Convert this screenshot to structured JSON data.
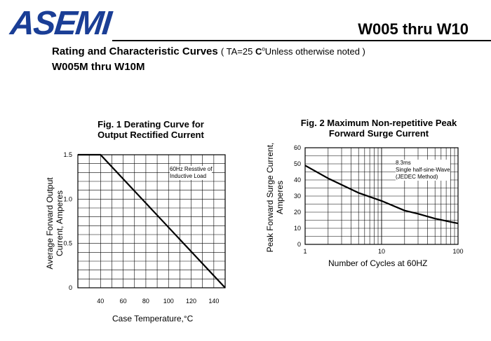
{
  "header": {
    "logo": "ASEMI",
    "model": "W005 thru W10",
    "title": "Rating and Characteristic Curves",
    "title_note": "( TA=25 ",
    "title_note_unit": "C",
    "title_note_rest": "Unless otherwise noted )",
    "subtitle": "W005M thru W10M",
    "brand_color": "#1a3e96"
  },
  "chart_data": [
    {
      "type": "line",
      "title_line1": "Fig. 1 Derating Curve for",
      "title_line2": "Output Rectified Current",
      "xlabel": "Case Temperature,°C",
      "ylabel_line1": "Average Forward Output",
      "ylabel_line2": "Current, Amperes",
      "xlim": [
        20,
        150
      ],
      "ylim": [
        0,
        1.5
      ],
      "x_ticks": [
        40,
        60,
        80,
        100,
        120,
        140
      ],
      "y_ticks": [
        0,
        0.5,
        1.0,
        1.5
      ],
      "y_tick_labels": [
        "0",
        "0.5",
        "1.0",
        "1.5"
      ],
      "grid": true,
      "annotation_line1": "60Hz Resstive of",
      "annotation_line2": "Inductive Load",
      "series": [
        {
          "x": [
            20,
            40,
            150
          ],
          "y": [
            1.5,
            1.5,
            0
          ]
        }
      ]
    },
    {
      "type": "line",
      "title_line1": "Fig. 2 Maximum Non-repetitive Peak",
      "title_line2": "Forward Surge Current",
      "xlabel": "Number of Cycles at 60HZ",
      "ylabel_line1": "Peak Forward Surge Current,",
      "ylabel_line2": "Amperes",
      "x_scale": "log",
      "xlim": [
        1,
        100
      ],
      "ylim": [
        0,
        60
      ],
      "x_ticks": [
        1,
        10,
        100
      ],
      "y_ticks": [
        0,
        10,
        20,
        30,
        40,
        50,
        60
      ],
      "grid": true,
      "annotation_line1": "8.3ms",
      "annotation_line2": "Single half-sine-Wave",
      "annotation_line3": "(JEDEC Method)",
      "series": [
        {
          "x": [
            1,
            2,
            3,
            5,
            10,
            20,
            30,
            50,
            100
          ],
          "y": [
            49,
            41,
            37,
            32,
            27,
            21,
            19,
            16,
            13
          ]
        }
      ]
    }
  ]
}
